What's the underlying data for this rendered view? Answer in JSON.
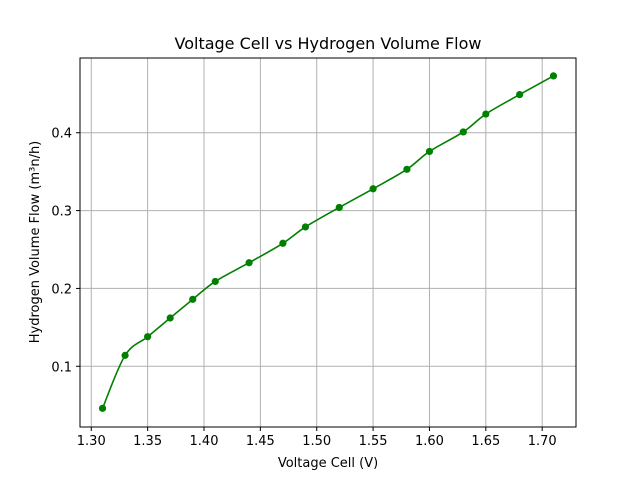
{
  "chart_data": {
    "type": "line",
    "title": "Voltage Cell vs  Hydrogen Volume Flow",
    "xlabel": "Voltage Cell (V)",
    "ylabel": "Hydrogen Volume Flow (m³n/h)",
    "xlim": [
      1.29,
      1.73
    ],
    "ylim": [
      0.022,
      0.496
    ],
    "xticks": [
      1.3,
      1.35,
      1.4,
      1.45,
      1.5,
      1.55,
      1.6,
      1.65,
      1.7
    ],
    "xtick_labels": [
      "1.30",
      "1.35",
      "1.40",
      "1.45",
      "1.50",
      "1.55",
      "1.60",
      "1.65",
      "1.70"
    ],
    "yticks": [
      0.1,
      0.2,
      0.3,
      0.4
    ],
    "ytick_labels": [
      "0.1",
      "0.2",
      "0.3",
      "0.4"
    ],
    "grid": true,
    "color": "#008000",
    "series": [
      {
        "x": [
          1.31,
          1.33,
          1.35,
          1.37,
          1.39,
          1.41,
          1.44,
          1.47,
          1.49,
          1.52,
          1.55,
          1.58,
          1.6,
          1.63,
          1.65,
          1.68,
          1.71
        ],
        "y": [
          0.046,
          0.114,
          0.138,
          0.162,
          0.186,
          0.209,
          0.233,
          0.258,
          0.279,
          0.304,
          0.328,
          0.353,
          0.376,
          0.401,
          0.424,
          0.449,
          0.473
        ]
      }
    ]
  }
}
